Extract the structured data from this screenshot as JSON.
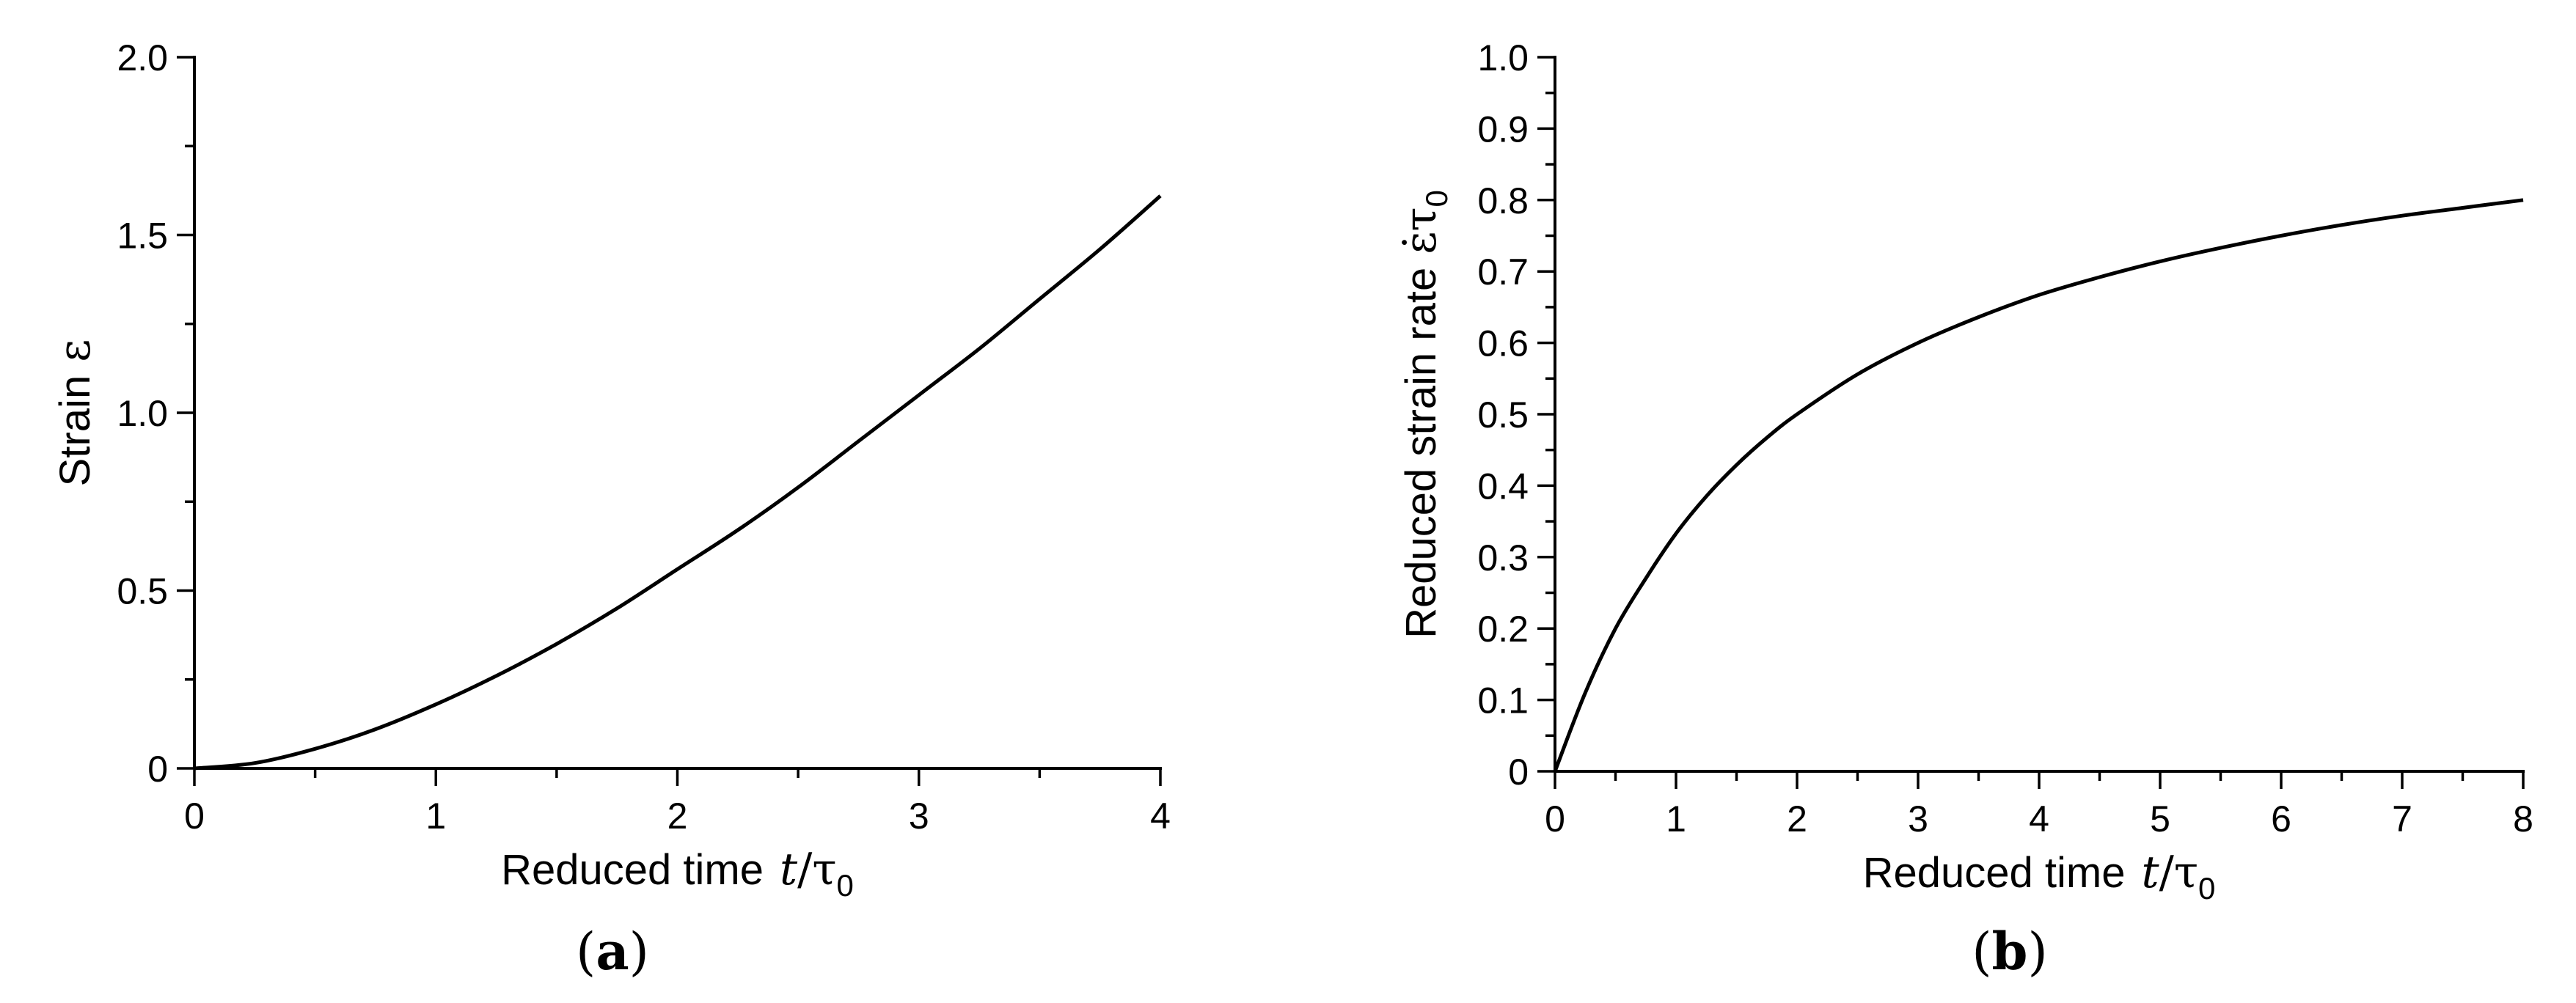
{
  "chart_data": [
    {
      "type": "line",
      "panel_label": {
        "open": "(",
        "letter": "a",
        "close": ")"
      },
      "xlabel": {
        "text": "Reduced time",
        "var": "t",
        "slash": "/",
        "tau": "τ",
        "sub": "0"
      },
      "ylabel": {
        "text": "Strain",
        "symbol": "ε"
      },
      "xlim": [
        0,
        4
      ],
      "ylim": [
        0,
        2.0
      ],
      "x_ticks": [
        0,
        1,
        2,
        3,
        4
      ],
      "x_tick_labels": [
        "0",
        "1",
        "2",
        "3",
        "4"
      ],
      "y_ticks": [
        0,
        0.5,
        1.0,
        1.5,
        2.0
      ],
      "y_tick_labels": [
        "0",
        "0.5",
        "1.0",
        "1.5",
        "2.0"
      ],
      "x_minor_step": 0.5,
      "y_minor_step": 0.25,
      "grid": false,
      "series": [
        {
          "x": [
            0,
            0.25,
            0.5,
            0.75,
            1.0,
            1.25,
            1.5,
            1.75,
            2.0,
            2.25,
            2.5,
            2.75,
            3.0,
            3.25,
            3.5,
            3.75,
            4.0
          ],
          "y": [
            0,
            0.015,
            0.055,
            0.11,
            0.18,
            0.26,
            0.35,
            0.45,
            0.56,
            0.67,
            0.79,
            0.92,
            1.05,
            1.18,
            1.32,
            1.46,
            1.61
          ]
        }
      ]
    },
    {
      "type": "line",
      "panel_label": {
        "open": "(",
        "letter": "b",
        "close": ")"
      },
      "xlabel": {
        "text": "Reduced time",
        "var": "t",
        "slash": "/",
        "tau": "τ",
        "sub": "0"
      },
      "ylabel": {
        "text": "Reduced strain rate",
        "symbol": "ε̇",
        "tau": "τ",
        "sub": "0"
      },
      "xlim": [
        0,
        8
      ],
      "ylim": [
        0,
        1.0
      ],
      "x_ticks": [
        0,
        1,
        2,
        3,
        4,
        5,
        6,
        7,
        8
      ],
      "x_tick_labels": [
        "0",
        "1",
        "2",
        "3",
        "4",
        "5",
        "6",
        "7",
        "8"
      ],
      "y_ticks": [
        0,
        0.1,
        0.2,
        0.3,
        0.4,
        0.5,
        0.6,
        0.7,
        0.8,
        0.9,
        1.0
      ],
      "y_tick_labels": [
        "0",
        "0.1",
        "0.2",
        "0.3",
        "0.4",
        "0.5",
        "0.6",
        "0.7",
        "0.8",
        "0.9",
        "1.0"
      ],
      "x_minor_step": 0.5,
      "y_minor_step": 0.05,
      "grid": false,
      "series": [
        {
          "x": [
            0,
            0.25,
            0.5,
            0.75,
            1.0,
            1.25,
            1.5,
            1.75,
            2.0,
            2.5,
            3.0,
            3.5,
            4.0,
            4.5,
            5.0,
            5.5,
            6.0,
            6.5,
            7.0,
            7.5,
            8.0
          ],
          "y": [
            0,
            0.11,
            0.2,
            0.27,
            0.333,
            0.385,
            0.429,
            0.467,
            0.5,
            0.556,
            0.6,
            0.636,
            0.667,
            0.692,
            0.714,
            0.733,
            0.75,
            0.765,
            0.778,
            0.789,
            0.8
          ]
        }
      ]
    }
  ]
}
